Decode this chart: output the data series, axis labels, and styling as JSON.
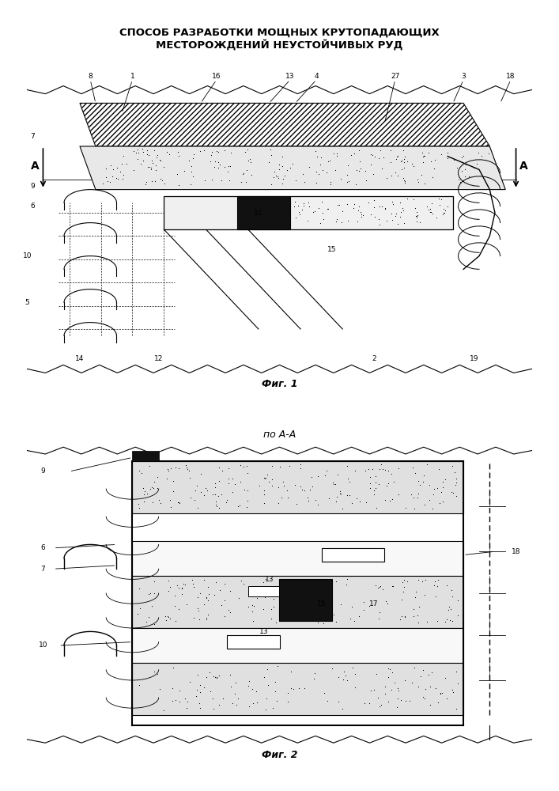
{
  "title_line1": "СПОСОБ РАЗРАБОТКИ МОЩНЫХ КРУТОПАДАЮЩИХ",
  "title_line2": "МЕСТОРОЖДЕНИЙ НЕУСТОЙЧИВЫХ РУД",
  "fig1_caption": "Фиг. 1",
  "fig2_caption": "Фиг. 2",
  "fig2_subtitle": "по А-А",
  "bg_color": "#ffffff",
  "line_color": "#000000",
  "hatch_color": "#000000",
  "dotted_fill": "#d8d8d8",
  "dark_fill": "#1a1a1a"
}
